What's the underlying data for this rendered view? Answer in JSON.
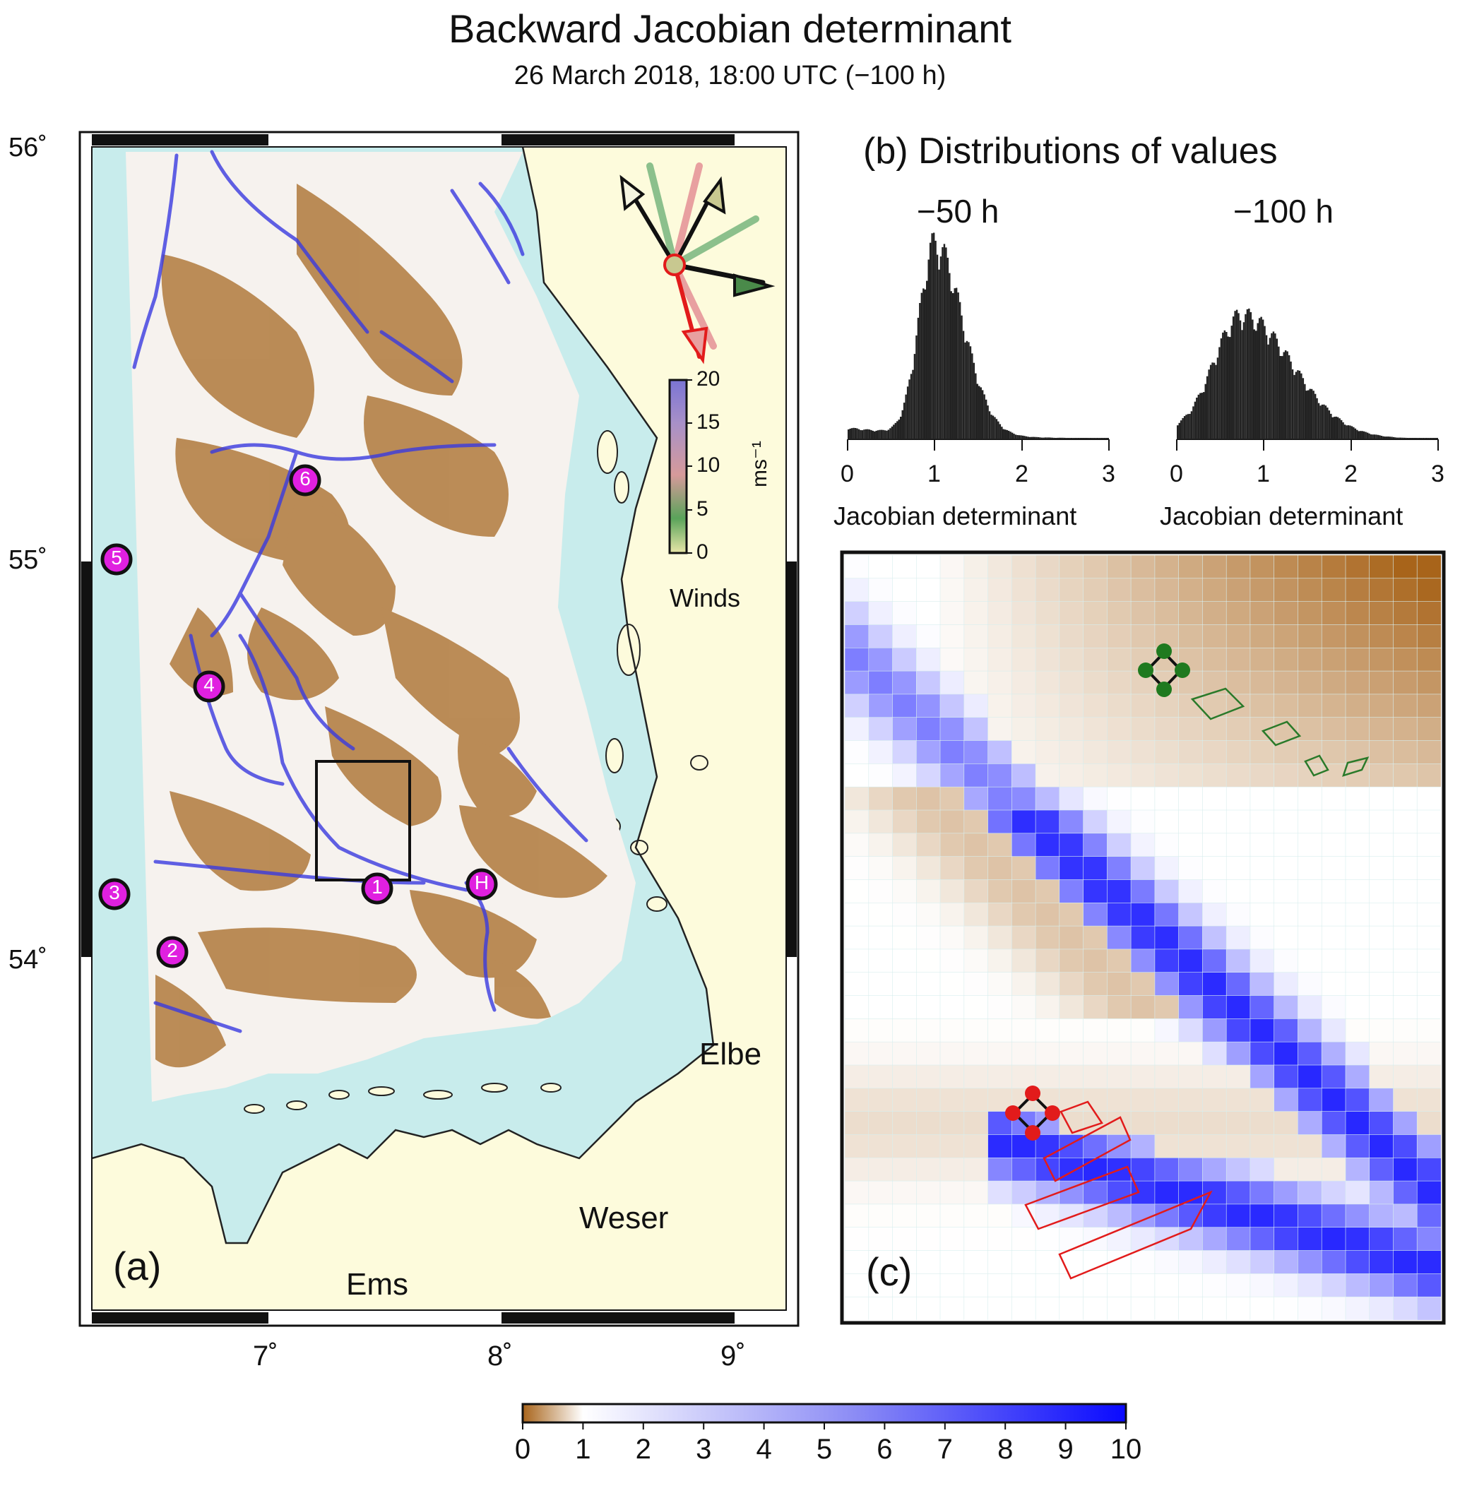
{
  "figure": {
    "title": "Backward Jacobian determinant",
    "subtitle": "26 March 2018, 18:00 UTC (−100 h)"
  },
  "panel_a": {
    "label": "(a)",
    "lat_ticks": [
      "56˚",
      "55˚",
      "54˚"
    ],
    "lon_ticks": [
      "7˚",
      "8˚",
      "9˚"
    ],
    "places": {
      "elbe": "Elbe",
      "weser": "Weser",
      "ems": "Ems"
    },
    "markers": [
      "1",
      "2",
      "3",
      "4",
      "5",
      "6",
      "H"
    ],
    "winds": {
      "caption": "Winds",
      "unit": "ms⁻¹",
      "ticks": [
        "20",
        "15",
        "10",
        "5",
        "0"
      ],
      "colors": [
        "#e8e6a8",
        "#5aa35a",
        "#d69a9a",
        "#7b74d4"
      ]
    },
    "land_color": "#fdfbdc",
    "water_color": "#c8ecec"
  },
  "panel_b": {
    "title": "(b)   Distributions of values",
    "histograms": [
      {
        "label": "−50 h",
        "xlabel": "Jacobian determinant",
        "xticks": [
          "0",
          "1",
          "2",
          "3"
        ],
        "peak": 1.0
      },
      {
        "label": "−100 h",
        "xlabel": "Jacobian determinant",
        "xticks": [
          "0",
          "1",
          "2",
          "3"
        ],
        "peak": 0.75
      }
    ]
  },
  "panel_c": {
    "label": "(c)"
  },
  "colorbar": {
    "ticks": [
      "0",
      "1",
      "2",
      "3",
      "4",
      "5",
      "6",
      "7",
      "8",
      "9",
      "10"
    ],
    "colors": [
      "#a8641a",
      "#ffffff",
      "#0a0aff"
    ]
  }
}
